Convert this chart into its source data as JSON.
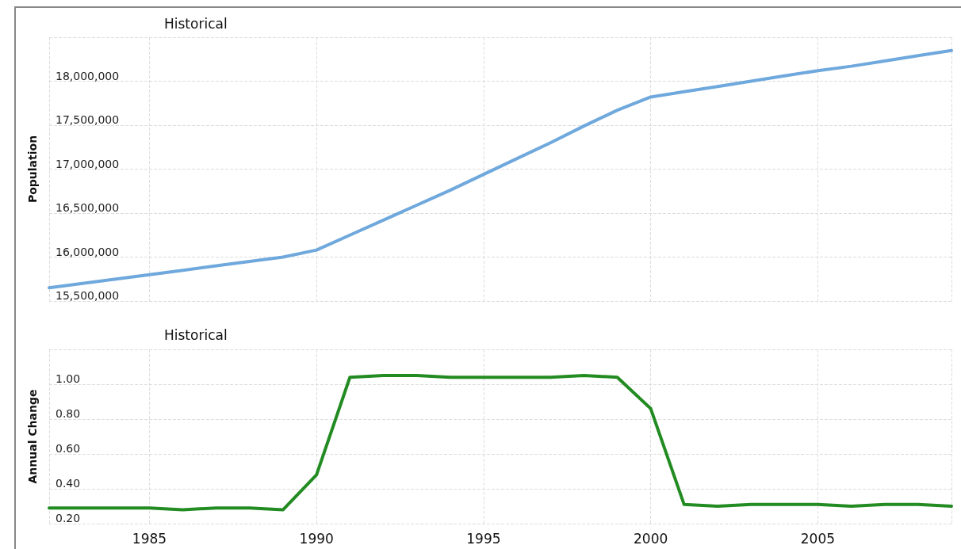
{
  "chart_data": [
    {
      "type": "line",
      "title": "Historical",
      "ylabel": "Population",
      "x": [
        1982,
        1983,
        1984,
        1985,
        1986,
        1987,
        1988,
        1989,
        1990,
        1991,
        1992,
        1993,
        1994,
        1995,
        1996,
        1997,
        1998,
        1999,
        2000,
        2001,
        2002,
        2003,
        2004,
        2005,
        2006,
        2007,
        2008,
        2009
      ],
      "series": [
        {
          "color": "#6fa8dc",
          "values": [
            15650000,
            15700000,
            15750000,
            15800000,
            15850000,
            15900000,
            15950000,
            16000000,
            16080000,
            16250000,
            16420000,
            16590000,
            16760000,
            16940000,
            17120000,
            17300000,
            17490000,
            17670000,
            17820000,
            17880000,
            17940000,
            18000000,
            18060000,
            18120000,
            18170000,
            18230000,
            18290000,
            18350000
          ]
        }
      ],
      "xlim": [
        1982,
        2009
      ],
      "xticks": [
        1985,
        1990,
        1995,
        2000,
        2005
      ],
      "ylim": [
        15500000,
        18500000
      ],
      "yticks": [
        {
          "value": 15500000,
          "label": "15,500,000"
        },
        {
          "value": 16000000,
          "label": "16,000,000"
        },
        {
          "value": 16500000,
          "label": "16,500,000"
        },
        {
          "value": 17000000,
          "label": "17,000,000"
        },
        {
          "value": 17500000,
          "label": "17,500,000"
        },
        {
          "value": 18000000,
          "label": "18,000,000"
        },
        {
          "value": 18500000,
          "label": null
        }
      ],
      "tick_labels": "y",
      "grid": true,
      "marker": "none",
      "line_style": "solid"
    },
    {
      "type": "line",
      "title": "Historical",
      "ylabel": "Annual Change",
      "x": [
        1982,
        1983,
        1984,
        1985,
        1986,
        1987,
        1988,
        1989,
        1990,
        1991,
        1992,
        1993,
        1994,
        1995,
        1996,
        1997,
        1998,
        1999,
        2000,
        2001,
        2002,
        2003,
        2004,
        2005,
        2006,
        2007,
        2008,
        2009
      ],
      "series": [
        {
          "color": "#228b22",
          "values": [
            0.29,
            0.29,
            0.29,
            0.29,
            0.28,
            0.29,
            0.29,
            0.28,
            0.48,
            1.04,
            1.05,
            1.05,
            1.04,
            1.04,
            1.04,
            1.04,
            1.05,
            1.04,
            0.86,
            0.31,
            0.3,
            0.31,
            0.31,
            0.31,
            0.3,
            0.31,
            0.31,
            0.3
          ]
        }
      ],
      "xlim": [
        1982,
        2009
      ],
      "xticks": [
        1985,
        1990,
        1995,
        2000,
        2005
      ],
      "ylim": [
        0.2,
        1.2
      ],
      "yticks": [
        {
          "value": 0.2,
          "label": "0.20"
        },
        {
          "value": 0.4,
          "label": "0.40"
        },
        {
          "value": 0.6,
          "label": "0.60"
        },
        {
          "value": 0.8,
          "label": "0.80"
        },
        {
          "value": 1.0,
          "label": "1.00"
        },
        {
          "value": 1.2,
          "label": null
        }
      ],
      "grid": true,
      "marker": "none",
      "line_style": "solid"
    }
  ]
}
